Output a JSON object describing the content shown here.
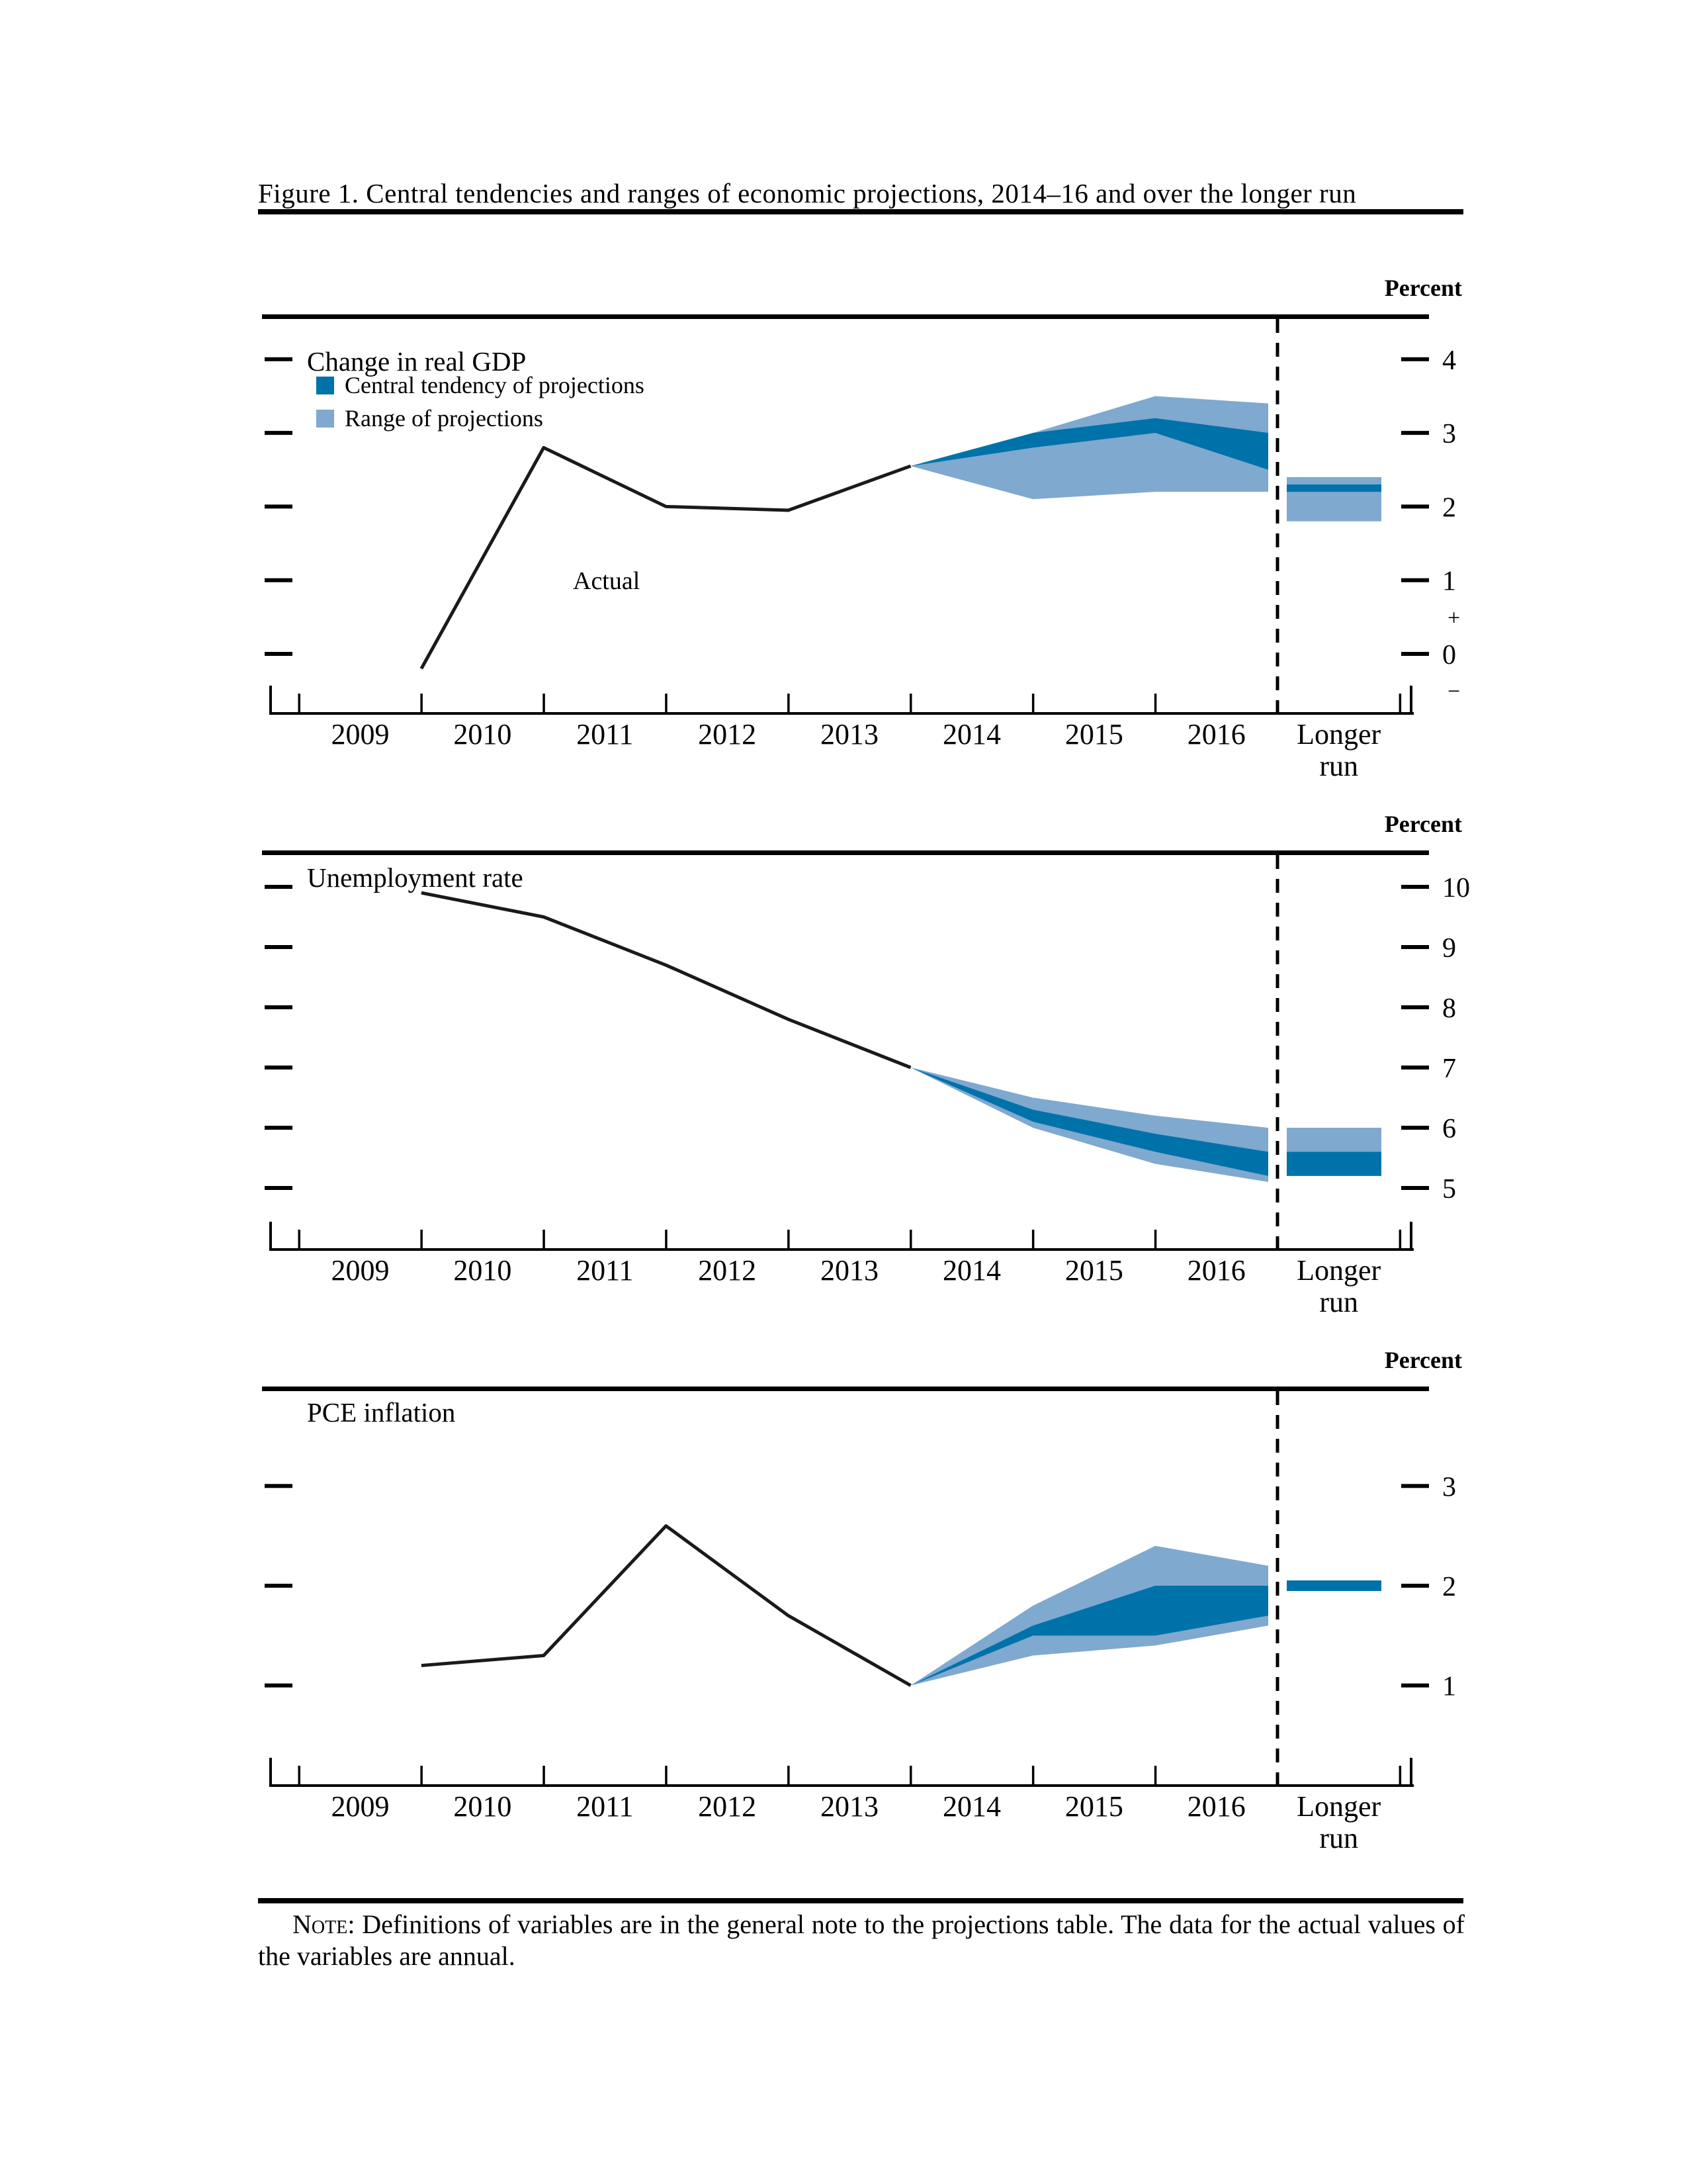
{
  "figure": {
    "title": "Figure 1. Central tendencies and ranges of economic projections, 2014–16 and over the longer run"
  },
  "percent_label": "Percent",
  "legend": {
    "central_label": "Central tendency of projections",
    "range_label": "Range of projections"
  },
  "actual_label": "Actual",
  "x_axis": {
    "years": [
      "2009",
      "2010",
      "2011",
      "2012",
      "2013",
      "2014",
      "2015",
      "2016"
    ],
    "longer_run": [
      "Longer",
      "run"
    ]
  },
  "note": {
    "label": "Note:",
    "text": "Definitions of variables are in the general note to the projections table. The data for the actual values of the variables are annual."
  },
  "colors": {
    "central": "#0072AA",
    "range": "#7FA9CF",
    "line": "#1a1a1a",
    "axis": "#000000"
  },
  "chart_data": [
    {
      "type": "line+band",
      "title": "Change in real GDP",
      "unit": "Percent",
      "y_ticks": [
        4,
        3,
        2,
        1,
        0
      ],
      "sign_labels": [
        "+",
        "−"
      ],
      "ylim": [
        -0.8,
        4.6
      ],
      "grid": false,
      "legend_position": "top-left",
      "actual": {
        "years": [
          2009,
          2010,
          2011,
          2012,
          2013
        ],
        "values": [
          -0.2,
          2.8,
          2.0,
          1.95,
          2.55
        ]
      },
      "projections": {
        "years": [
          2014,
          2015,
          2016
        ],
        "range": {
          "top": [
            3.0,
            3.5,
            3.4
          ],
          "bottom": [
            2.1,
            2.2,
            2.2
          ]
        },
        "central": {
          "top": [
            3.0,
            3.2,
            3.0
          ],
          "bottom": [
            2.8,
            3.0,
            2.5
          ]
        }
      },
      "longer_run": {
        "range": [
          1.8,
          2.4
        ],
        "central": [
          2.2,
          2.3
        ]
      }
    },
    {
      "type": "line+band",
      "title": "Unemployment rate",
      "unit": "Percent",
      "y_ticks": [
        10,
        9,
        8,
        7,
        6,
        5
      ],
      "ylim": [
        4.0,
        10.6
      ],
      "grid": false,
      "actual": {
        "years": [
          2009,
          2010,
          2011,
          2012,
          2013
        ],
        "values": [
          9.9,
          9.5,
          8.7,
          7.8,
          7.0
        ]
      },
      "projections": {
        "years": [
          2014,
          2015,
          2016
        ],
        "range": {
          "top": [
            6.5,
            6.2,
            6.0
          ],
          "bottom": [
            6.0,
            5.4,
            5.1
          ]
        },
        "central": {
          "top": [
            6.3,
            5.9,
            5.6
          ],
          "bottom": [
            6.1,
            5.6,
            5.2
          ]
        }
      },
      "longer_run": {
        "range": [
          5.2,
          6.0
        ],
        "central": [
          5.2,
          5.6
        ]
      }
    },
    {
      "type": "line+band",
      "title": "PCE inflation",
      "unit": "Percent",
      "y_ticks": [
        3,
        2,
        1
      ],
      "ylim": [
        0.0,
        4.0
      ],
      "grid": false,
      "actual": {
        "years": [
          2009,
          2010,
          2011,
          2012,
          2013
        ],
        "values": [
          1.2,
          1.3,
          2.6,
          1.7,
          1.0
        ]
      },
      "projections": {
        "years": [
          2014,
          2015,
          2016
        ],
        "range": {
          "top": [
            1.8,
            2.4,
            2.2
          ],
          "bottom": [
            1.3,
            1.4,
            1.6
          ]
        },
        "central": {
          "top": [
            1.6,
            2.0,
            2.0
          ],
          "bottom": [
            1.5,
            1.5,
            1.7
          ]
        }
      },
      "longer_run": {
        "central_value": 2.0
      }
    }
  ]
}
